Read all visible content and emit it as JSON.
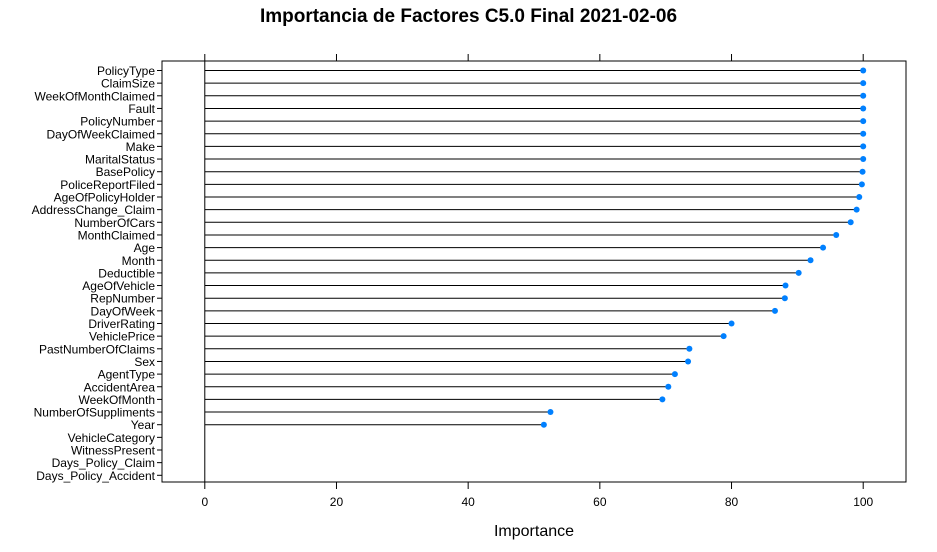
{
  "chart_data": {
    "type": "dotplot",
    "title": "Importancia de Factores C5.0 Final 2021-02-06",
    "xlabel": "Importance",
    "ylabel": "",
    "xlim": [
      -6.5,
      106.5
    ],
    "xticks": [
      0,
      20,
      40,
      60,
      80,
      100
    ],
    "grid": false,
    "point_color": "#0080FF",
    "categories": [
      "PolicyType",
      "ClaimSize",
      "WeekOfMonthClaimed",
      "Fault",
      "PolicyNumber",
      "DayOfWeekClaimed",
      "Make",
      "MaritalStatus",
      "BasePolicy",
      "PoliceReportFiled",
      "AgeOfPolicyHolder",
      "AddressChange_Claim",
      "NumberOfCars",
      "MonthClaimed",
      "Age",
      "Month",
      "Deductible",
      "AgeOfVehicle",
      "RepNumber",
      "DayOfWeek",
      "DriverRating",
      "VehiclePrice",
      "PastNumberOfClaims",
      "Sex",
      "AgentType",
      "AccidentArea",
      "WeekOfMonth",
      "NumberOfSuppliments",
      "Year",
      "VehicleCategory",
      "WitnessPresent",
      "Days_Policy_Claim",
      "Days_Policy_Accident"
    ],
    "values": [
      100,
      100,
      100,
      100,
      100,
      100,
      100,
      100,
      99.9,
      99.8,
      99.4,
      99.0,
      98.1,
      95.9,
      93.9,
      92.0,
      90.2,
      88.2,
      88.1,
      86.6,
      80.0,
      78.8,
      73.6,
      73.4,
      71.4,
      70.4,
      69.5,
      52.5,
      51.5,
      0,
      0,
      0,
      0
    ]
  }
}
